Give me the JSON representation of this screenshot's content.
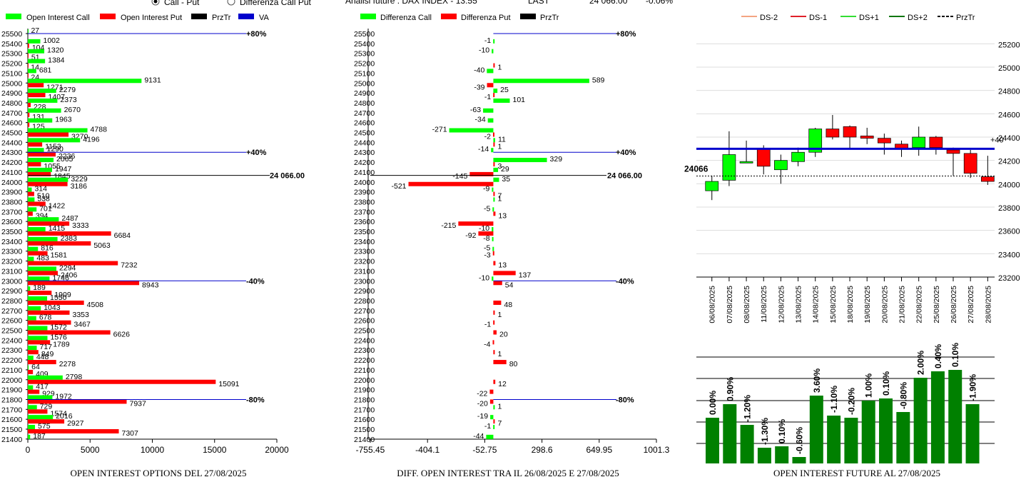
{
  "header": {
    "radio_call_put": "Call - Put",
    "radio_diff": "Differenza Call Put",
    "analysis": "Analisi future : DAX INDEX - 13:55",
    "last_label": "LAST",
    "last_value": "24 066.00",
    "last_change": "-0.06%"
  },
  "colors": {
    "green": "#00ff00",
    "red": "#ff0000",
    "darkgreen": "#008000",
    "blue": "#0000cc",
    "black": "#000000",
    "gray_grid": "#aaaaaa"
  },
  "chart_data": [
    {
      "type": "bar",
      "title": "OPEN INTEREST OPTIONS DEL 27/08/2025",
      "legend": [
        "Open Interest Call",
        "Open Interest Put",
        "PrzTr",
        "VA"
      ],
      "strikes": [
        25500,
        25400,
        25300,
        25200,
        25100,
        25000,
        24900,
        24800,
        24700,
        24600,
        24500,
        24400,
        24300,
        24200,
        24100,
        24000,
        23900,
        23800,
        23700,
        23600,
        23500,
        23400,
        23300,
        23200,
        23100,
        23000,
        22900,
        22800,
        22700,
        22600,
        22500,
        22400,
        22300,
        22200,
        22100,
        22000,
        21900,
        21800,
        21700,
        21600,
        21500,
        21400
      ],
      "series": [
        {
          "name": "Open Interest Call",
          "values": [
            27,
            1002,
            1320,
            1384,
            681,
            9131,
            2279,
            2373,
            2670,
            1963,
            4788,
            4196,
            1290,
            2065,
            1947,
            3229,
            314,
            538,
            701,
            2487,
            1415,
            2383,
            816,
            483,
            2294,
            1746,
            189,
            1550,
            1043,
            678,
            1572,
            1576,
            717,
            448,
            64,
            2798,
            417,
            1972,
            729,
            2016,
            575,
            187
          ]
        },
        {
          "name": "Open Interest Put",
          "values": [
            0,
            104,
            51,
            14,
            24,
            1271,
            1407,
            228,
            131,
            125,
            3270,
            1153,
            2236,
            1055,
            1845,
            3186,
            510,
            1422,
            394,
            3333,
            6684,
            5063,
            1581,
            7232,
            2406,
            8943,
            1909,
            4508,
            3353,
            3467,
            6626,
            1789,
            849,
            2278,
            409,
            15091,
            929,
            7937,
            1574,
            2927,
            7307,
            0
          ]
        }
      ],
      "markers": [
        {
          "strike": 25500,
          "label": "+80%"
        },
        {
          "strike": 24300,
          "label": "+40%"
        },
        {
          "strike": 23000,
          "label": "-40%"
        },
        {
          "strike": 21800,
          "label": "-80%"
        }
      ],
      "przTr": {
        "strike": 24066,
        "label": "24 066.00"
      },
      "xticks": [
        0,
        5000,
        10000,
        15000,
        20000
      ],
      "xlim": [
        0,
        20000
      ]
    },
    {
      "type": "bar",
      "title": "DIFF. OPEN INTEREST TRA IL 26/08/2025 E 27/08/2025",
      "legend": [
        "Differenza Call",
        "Differenza Put",
        "PrzTr"
      ],
      "strikes": [
        25500,
        25400,
        25300,
        25200,
        25100,
        25000,
        24900,
        24800,
        24700,
        24600,
        24500,
        24400,
        24300,
        24200,
        24100,
        24000,
        23900,
        23800,
        23700,
        23600,
        23500,
        23400,
        23300,
        23200,
        23100,
        23000,
        22900,
        22800,
        22700,
        22600,
        22500,
        22400,
        22300,
        22200,
        22100,
        22000,
        21900,
        21800,
        21700,
        21600,
        21500,
        21400
      ],
      "series": [
        {
          "name": "Differenza Call",
          "values": [
            null,
            -1,
            -10,
            null,
            -40,
            589,
            25,
            101,
            -63,
            -34,
            -271,
            11,
            -14,
            329,
            29,
            35,
            -9,
            1,
            -5,
            null,
            -10,
            -8,
            -5,
            null,
            null,
            -10,
            null,
            null,
            null,
            null,
            null,
            null,
            null,
            null,
            null,
            null,
            null,
            null,
            1,
            -19,
            -1,
            -44
          ]
        },
        {
          "name": "Differenza Put",
          "values": [
            null,
            null,
            null,
            1,
            null,
            -39,
            -1,
            null,
            null,
            null,
            -2,
            1,
            null,
            3,
            -145,
            -521,
            7,
            null,
            13,
            -215,
            -92,
            null,
            -3,
            13,
            137,
            54,
            null,
            48,
            1,
            -1,
            20,
            -4,
            1,
            80,
            null,
            12,
            -22,
            -20,
            null,
            7,
            null,
            null
          ]
        }
      ],
      "markers": [
        {
          "strike": 25500,
          "label": "+80%"
        },
        {
          "strike": 24300,
          "label": "+40%"
        },
        {
          "strike": 23000,
          "label": "-40%"
        },
        {
          "strike": 21800,
          "label": "-80%"
        }
      ],
      "przTr": {
        "strike": 24066,
        "label": "24 066.00"
      },
      "xticks": [
        -755.45,
        -404.1,
        -52.75,
        298.6,
        649.95,
        1001.3
      ],
      "xtick_labels": [
        "-755.45",
        "-404.1",
        "-52.75",
        "298.6",
        "649.95",
        "1001.3"
      ],
      "xlim": [
        -755.45,
        1001.3
      ]
    },
    {
      "type": "candlestick",
      "legend": [
        "DS-2",
        "DS-1",
        "DS+1",
        "DS+2",
        "PrzTr"
      ],
      "legend_colors": [
        "#f4a582",
        "#e0202a",
        "#33dd33",
        "#117711",
        "#000000"
      ],
      "dates": [
        "06/08/2025",
        "07/08/2025",
        "08/08/2025",
        "11/08/2025",
        "12/08/2025",
        "13/08/2025",
        "14/08/2025",
        "15/08/2025",
        "18/08/2025",
        "19/08/2025",
        "20/08/2025",
        "21/08/2025",
        "22/08/2025",
        "25/08/2025",
        "26/08/2025",
        "27/08/2025",
        "28/08/2025"
      ],
      "ohlc": [
        [
          23940,
          24070,
          23860,
          24020
        ],
        [
          24030,
          24450,
          23980,
          24250
        ],
        [
          24190,
          24370,
          24180,
          24190
        ],
        [
          24300,
          24330,
          24080,
          24150
        ],
        [
          24120,
          24250,
          24000,
          24200
        ],
        [
          24190,
          24310,
          24150,
          24270
        ],
        [
          24270,
          24480,
          24230,
          24470
        ],
        [
          24470,
          24590,
          24380,
          24400
        ],
        [
          24490,
          24500,
          24300,
          24400
        ],
        [
          24410,
          24480,
          24340,
          24390
        ],
        [
          24390,
          24430,
          24250,
          24350
        ],
        [
          24340,
          24370,
          24230,
          24300
        ],
        [
          24310,
          24490,
          24240,
          24400
        ],
        [
          24400,
          24410,
          24250,
          24310
        ],
        [
          24290,
          24310,
          24070,
          24260
        ],
        [
          24260,
          24290,
          24050,
          24090
        ],
        [
          24060,
          24240,
          23990,
          24020
        ]
      ],
      "ylim": [
        23200,
        25300
      ],
      "yticks": [
        23200,
        23400,
        23600,
        23800,
        24000,
        24200,
        24400,
        24600,
        24800,
        25000,
        25200
      ],
      "hline_blue": 24300,
      "hline_blue_label": "+40",
      "przTr": 24066,
      "przTr_label": "24066"
    },
    {
      "type": "bar",
      "title": "OPEN INTEREST FUTURE AL 27/08/2025",
      "categories": [
        "06/08/2025",
        "07/08/2025",
        "08/08/2025",
        "11/08/2025",
        "12/08/2025",
        "13/08/2025",
        "14/08/2025",
        "15/08/2025",
        "18/08/2025",
        "19/08/2025",
        "20/08/2025",
        "21/08/2025",
        "22/08/2025",
        "25/08/2025",
        "26/08/2025",
        "27/08/2025"
      ],
      "values": [
        64,
        83,
        54,
        22,
        24,
        9,
        95,
        67,
        64,
        88,
        91,
        72,
        120,
        129,
        131,
        83
      ],
      "labels": [
        "0.00%",
        "0.90%",
        "-1.20%",
        "-1.30%",
        "0.10%",
        "-0.60%",
        "3.60%",
        "-1.10%",
        "-0.20%",
        "1.00%",
        "0.10%",
        "-0.80%",
        "2.00%",
        "0.40%",
        "0.10%",
        "-1.90%"
      ]
    }
  ]
}
